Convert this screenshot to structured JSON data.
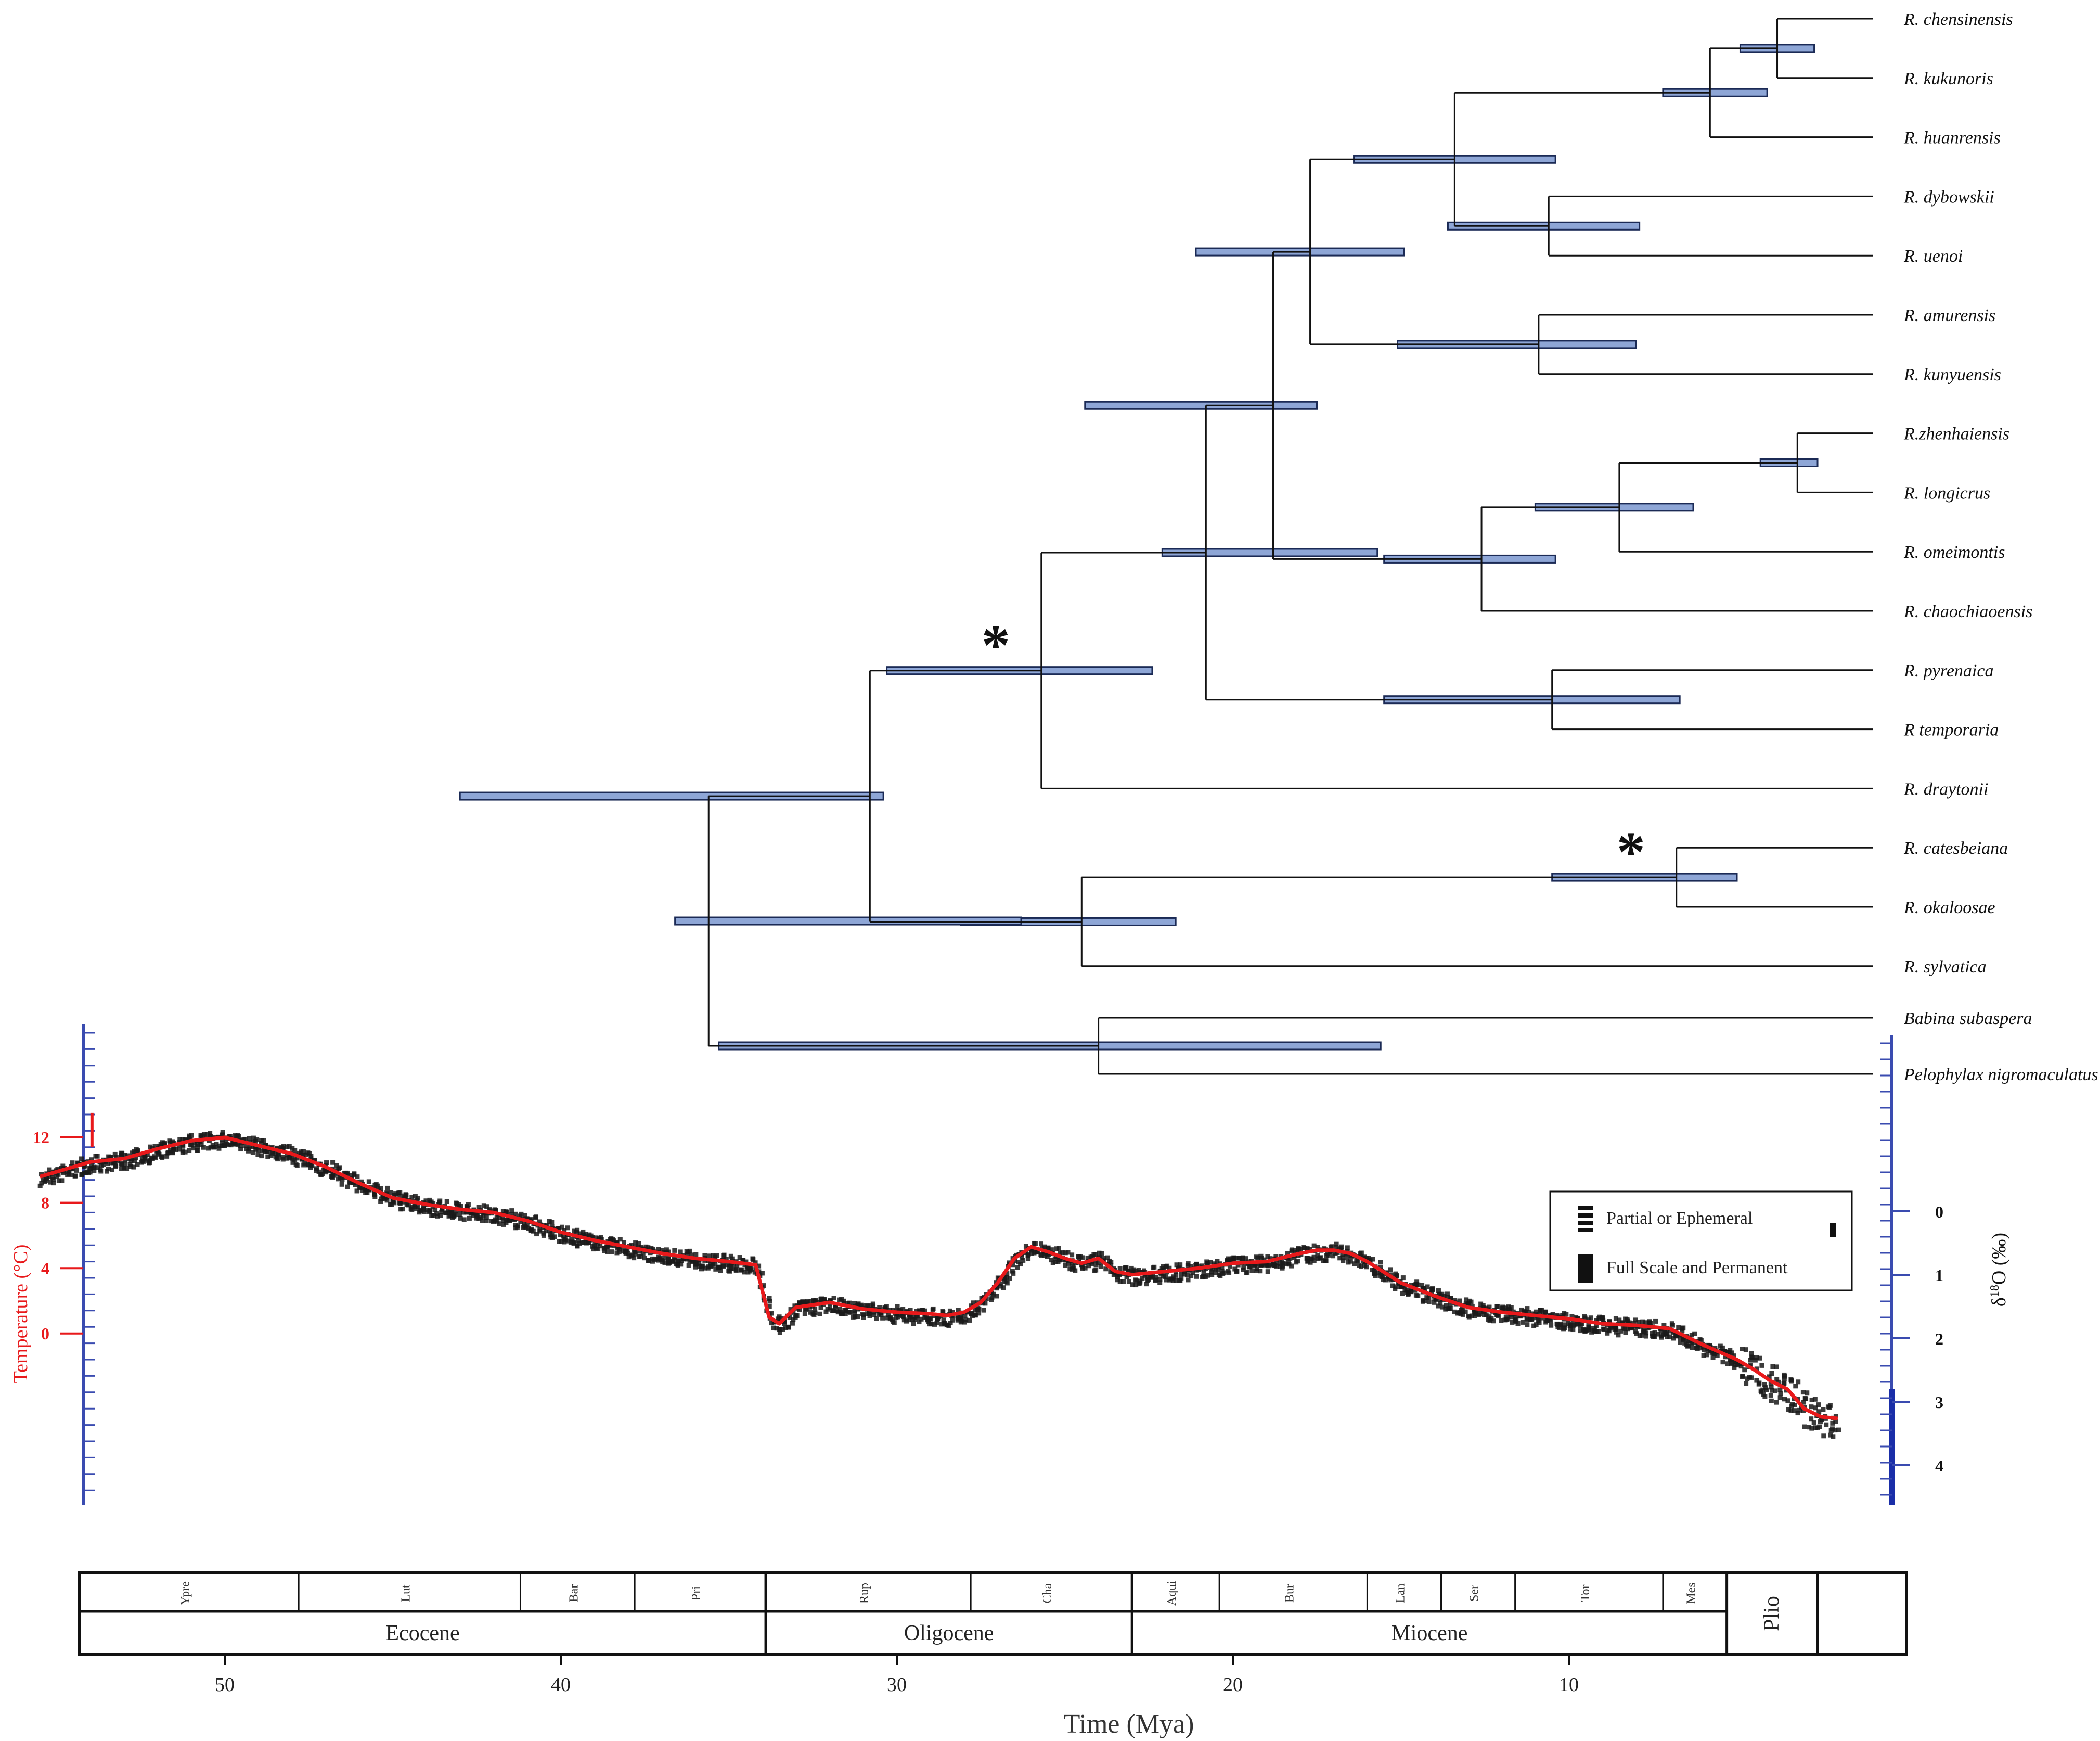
{
  "chart_data": [
    {
      "type": "tree",
      "time_unit": "Mya",
      "taxa": [
        "R. chensinensis",
        "R. kukunoris",
        "R. huanrensis",
        "R. dybowskii",
        "R. uenoi",
        "R. amurensis",
        "R. kunyuensis",
        "R.zhenhaiensis",
        "R. longicrus",
        "R. omeimontis",
        "R. chaochiaoensis",
        "R. pyrenaica",
        "R temporaria",
        "R. draytonii",
        "R. catesbeiana",
        "R. okaloosae",
        "R. sylvatica",
        "Babina subaspera",
        "Pelophylax nigromaculatus"
      ],
      "nodes": [
        {
          "id": "n1",
          "children": [
            "R. chensinensis",
            "R. kukunoris"
          ],
          "age": 3.8,
          "hpd": [
            2.7,
            4.9
          ],
          "star": false
        },
        {
          "id": "n2",
          "children": [
            "n1",
            "R. huanrensis"
          ],
          "age": 5.8,
          "hpd": [
            4.1,
            7.2
          ],
          "star": false
        },
        {
          "id": "n3",
          "children": [
            "R. dybowskii",
            "R. uenoi"
          ],
          "age": 10.6,
          "hpd": [
            7.9,
            13.6
          ],
          "star": false
        },
        {
          "id": "n4",
          "children": [
            "n2",
            "n3"
          ],
          "age": 13.4,
          "hpd": [
            10.4,
            16.4
          ],
          "star": false
        },
        {
          "id": "n5",
          "children": [
            "R. amurensis",
            "R. kunyuensis"
          ],
          "age": 10.9,
          "hpd": [
            8.0,
            15.1
          ],
          "star": false
        },
        {
          "id": "n6",
          "children": [
            "n4",
            "n5"
          ],
          "age": 17.7,
          "hpd": [
            14.9,
            21.1
          ],
          "star": false
        },
        {
          "id": "n7",
          "children": [
            "R.zhenhaiensis",
            "R. longicrus"
          ],
          "age": 3.2,
          "hpd": [
            2.6,
            4.3
          ],
          "star": false
        },
        {
          "id": "n8",
          "children": [
            "n7",
            "R. omeimontis"
          ],
          "age": 8.5,
          "hpd": [
            6.3,
            11.0
          ],
          "star": false
        },
        {
          "id": "n9",
          "children": [
            "n8",
            "R. chaochiaoensis"
          ],
          "age": 12.6,
          "hpd": [
            10.4,
            15.5
          ],
          "star": false
        },
        {
          "id": "n10",
          "children": [
            "n6",
            "n9"
          ],
          "age": 18.8,
          "hpd": [
            17.5,
            24.4
          ],
          "star": false
        },
        {
          "id": "n11",
          "children": [
            "R. pyrenaica",
            "R temporaria"
          ],
          "age": 10.5,
          "hpd": [
            6.7,
            15.5
          ],
          "star": false
        },
        {
          "id": "n12",
          "children": [
            "n10",
            "n11"
          ],
          "age": 20.8,
          "hpd": [
            15.7,
            22.1
          ],
          "star": false
        },
        {
          "id": "n13",
          "children": [
            "n12",
            "R. draytonii"
          ],
          "age": 25.7,
          "hpd": [
            22.4,
            30.3
          ],
          "star": true
        },
        {
          "id": "n14",
          "children": [
            "R. catesbeiana",
            "R. okaloosae"
          ],
          "age": 6.8,
          "hpd": [
            5.0,
            10.5
          ],
          "star": true
        },
        {
          "id": "n15",
          "children": [
            "n14",
            "R. sylvatica"
          ],
          "age": 24.5,
          "hpd": [
            21.7,
            28.1
          ],
          "star": false
        },
        {
          "id": "n16",
          "children": [
            "n13",
            "n15"
          ],
          "age": 30.8,
          "hpd": [
            30.4,
            43.0
          ],
          "star": false
        },
        {
          "id": "n17",
          "children": [
            "Babina subaspera",
            "Pelophylax nigromaculatus"
          ],
          "age": 24.0,
          "hpd": [
            15.6,
            35.3
          ],
          "star": false
        },
        {
          "id": "root",
          "children": [
            "n16",
            "n17"
          ],
          "age": 35.6,
          "hpd": [
            26.3,
            36.6
          ],
          "star": false
        }
      ]
    },
    {
      "type": "line",
      "xlabel": "Time (Mya)",
      "y1label": "Temperature (°C)",
      "y2label": "δ18O (‰)",
      "y1ticks": [
        0,
        4,
        8,
        12
      ],
      "y2ticks": [
        0,
        1,
        2,
        3,
        4
      ],
      "series": [
        {
          "x": [
            55.5,
            54,
            53,
            52,
            51,
            50,
            49,
            48,
            47,
            46,
            45,
            44,
            43,
            42,
            41,
            40,
            39,
            38,
            37,
            36,
            35,
            34.2,
            33.8,
            33.5,
            33,
            32,
            31,
            30,
            29,
            28.5,
            28,
            27.5,
            27,
            26.5,
            26,
            25.5,
            25,
            24.5,
            24,
            23.5,
            23,
            22,
            21,
            20,
            19,
            18,
            17.5,
            17,
            16.5,
            16,
            15,
            14,
            13,
            12,
            11,
            10,
            9,
            8,
            7,
            6,
            5,
            4.5,
            4,
            3.5,
            3,
            2.5,
            2
          ],
          "values": [
            9.6,
            10.5,
            10.7,
            11.3,
            11.8,
            12.0,
            11.5,
            11.0,
            10.2,
            9.2,
            8.3,
            7.9,
            7.6,
            7.4,
            6.9,
            6.2,
            5.7,
            5.3,
            4.9,
            4.6,
            4.4,
            4.2,
            1.0,
            0.6,
            1.6,
            1.9,
            1.5,
            1.3,
            1.2,
            1.1,
            1.3,
            1.9,
            3.1,
            4.6,
            5.3,
            5.0,
            4.6,
            4.3,
            4.6,
            3.8,
            3.6,
            3.8,
            4.0,
            4.3,
            4.4,
            4.9,
            5.1,
            5.1,
            4.9,
            4.4,
            3.1,
            2.3,
            1.6,
            1.3,
            1.1,
            0.9,
            0.6,
            0.5,
            0.3,
            -0.7,
            -1.6,
            -2.2,
            -2.9,
            -3.4,
            -4.6,
            -5.1,
            -5.2
          ]
        }
      ],
      "legend": [
        "Partial or Ephemeral",
        "Full Scale and Permanent"
      ],
      "legend_position": "top-right",
      "xticks": [
        50,
        40,
        30,
        20,
        10
      ],
      "stages": [
        {
          "label": "Ypre",
          "start": 56,
          "end": 47.8
        },
        {
          "label": "Lut",
          "start": 47.8,
          "end": 41.2
        },
        {
          "label": "Bar",
          "start": 41.2,
          "end": 37.8
        },
        {
          "label": "Pri",
          "start": 37.8,
          "end": 33.9
        },
        {
          "label": "Rup",
          "start": 33.9,
          "end": 27.8
        },
        {
          "label": "Cha",
          "start": 27.8,
          "end": 23.0
        },
        {
          "label": "Aqui",
          "start": 23.0,
          "end": 20.4
        },
        {
          "label": "Bur",
          "start": 20.4,
          "end": 16.0
        },
        {
          "label": "Lan",
          "start": 16.0,
          "end": 13.8
        },
        {
          "label": "Ser",
          "start": 13.8,
          "end": 11.6
        },
        {
          "label": "Tor",
          "start": 11.6,
          "end": 7.2
        },
        {
          "label": "Mes",
          "start": 7.2,
          "end": 5.3
        }
      ],
      "epochs": [
        {
          "label": "Ecocene",
          "start": 56,
          "end": 33.9
        },
        {
          "label": "Oligocene",
          "start": 33.9,
          "end": 23.0
        },
        {
          "label": "Miocene",
          "start": 23.0,
          "end": 5.3
        },
        {
          "label": "Plio",
          "start": 5.3,
          "end": 2.6
        }
      ]
    }
  ],
  "colors": {
    "branch": "#111111",
    "hpd_fill": "#8ea6d6",
    "hpd_stroke": "#1b2a55",
    "temperature": "#e8191b",
    "d18o_scatter": "#1a1a1a",
    "right_axis": "#1a2ea8"
  }
}
